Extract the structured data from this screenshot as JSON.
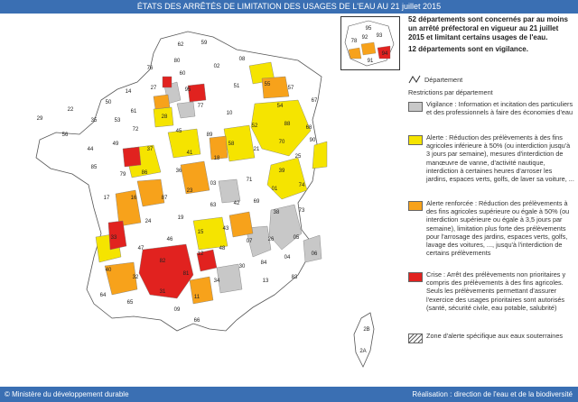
{
  "title": "ÉTATS DES ARRÊTÉS DE LIMITATION DES USAGES DE L'EAU AU 21 juillet 2015",
  "summary": {
    "line1": "52 départements sont concernés par au moins un arrêté préfectoral en vigueur au 21 juillet 2015 et limitant certains usages de l'eau.",
    "line2": "12 départements sont en vigilance."
  },
  "legend": {
    "department_label": "Département",
    "heading": "Restrictions par département",
    "items": [
      {
        "id": "vigilance",
        "text": "Vigilance : Information et incitation des particuliers et des professionnels à faire des économies d'eau",
        "color": "#c8c8c8"
      },
      {
        "id": "alerte",
        "text": "Alerte : Réduction des prélèvements à des fins agricoles inférieure à 50% (ou interdiction jusqu'à 3 jours par semaine), mesures d'interdiction de manœuvre de vanne, d'activité nautique, interdiction à certaines heures d'arroser les jardins, espaces verts, golfs, de laver sa voiture, ...",
        "color": "#f5e400"
      },
      {
        "id": "alerte-renforcee",
        "text": "Alerte renforcée : Réduction des prélèvements à des fins agricoles supérieure ou égale à 50% (ou interdiction supérieure ou égale à 3,5 jours par semaine), limitation plus forte des prélèvements pour l'arrosage des jardins, espaces verts, golfs, lavage des voitures, ..., jusqu'à l'interdiction de certains prélèvements",
        "color": "#f7a21b"
      },
      {
        "id": "crise",
        "text": "Crise : Arrêt des prélèvements non prioritaires y compris des prélèvements à des fins agricoles. Seuls les prélèvements permettant d'assurer l'exercice des usages prioritaires sont autorisés (santé, sécurité civile, eau potable, salubrité)",
        "color": "#e1221f"
      },
      {
        "id": "zone-souterraine",
        "text": "Zone d'alerte spécifique aux eaux souterraines",
        "color": "#ffffff"
      }
    ]
  },
  "map": {
    "labels": [
      "62",
      "59",
      "80",
      "02",
      "08",
      "76",
      "60",
      "50",
      "14",
      "27",
      "95",
      "51",
      "55",
      "57",
      "67",
      "61",
      "28",
      "77",
      "10",
      "54",
      "88",
      "68",
      "53",
      "72",
      "45",
      "89",
      "52",
      "70",
      "25",
      "90",
      "35",
      "22",
      "29",
      "56",
      "44",
      "49",
      "37",
      "41",
      "18",
      "58",
      "21",
      "39",
      "86",
      "36",
      "03",
      "71",
      "01",
      "74",
      "85",
      "79",
      "17",
      "16",
      "87",
      "23",
      "63",
      "42",
      "69",
      "38",
      "73",
      "24",
      "19",
      "15",
      "43",
      "07",
      "26",
      "05",
      "04",
      "06",
      "33",
      "47",
      "46",
      "12",
      "48",
      "30",
      "84",
      "13",
      "83",
      "40",
      "32",
      "82",
      "81",
      "34",
      "64",
      "65",
      "31",
      "09",
      "11",
      "66",
      "2A",
      "2B"
    ],
    "inset_labels": [
      "95",
      "78",
      "92",
      "93",
      "94",
      "91"
    ]
  },
  "footer": {
    "left": "© Ministère du développement durable",
    "right": "Réalisation : direction de l'eau et de la biodiversité"
  },
  "colors": {
    "header": "#3a6fb3",
    "vigilance": "#c8c8c8",
    "alerte": "#f5e400",
    "alerte_renforcee": "#f7a21b",
    "crise": "#e1221f"
  }
}
